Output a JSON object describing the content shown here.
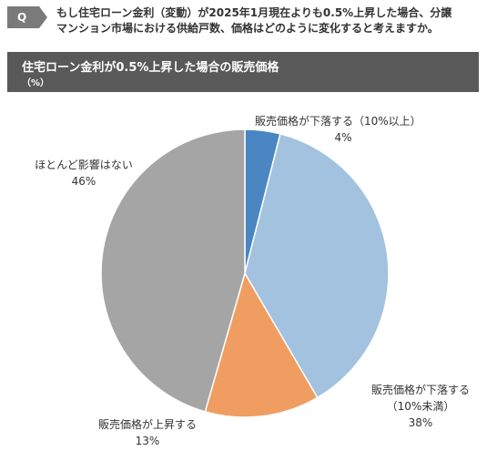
{
  "question": {
    "badge": "Q",
    "text_line1": "もし住宅ローン金利（変動）が2025年1月現在よりも0.5%上昇した場合、分譲",
    "text_line2": "マンション市場における供給戸数、価格はどのように変化すると考えますか。"
  },
  "chart_data": {
    "type": "pie",
    "title": "住宅ローン金利が0.5%上昇した場合の販売価格",
    "unit": "（%）",
    "slices": [
      {
        "label_lines": [
          "販売価格が下落する（10%以上）"
        ],
        "value": 4,
        "value_label": "4%",
        "color": "#4a86c1"
      },
      {
        "label_lines": [
          "販売価格が下落する",
          "（10%未満）"
        ],
        "value": 38,
        "value_label": "38%",
        "color": "#a3c2df"
      },
      {
        "label_lines": [
          "販売価格が上昇する"
        ],
        "value": 13,
        "value_label": "13%",
        "color": "#f09d62"
      },
      {
        "label_lines": [
          "ほとんど影響はない"
        ],
        "value": 46,
        "value_label": "46%",
        "color": "#a5a5a5"
      }
    ],
    "start_angle": "12 o'clock",
    "direction": "clockwise"
  }
}
